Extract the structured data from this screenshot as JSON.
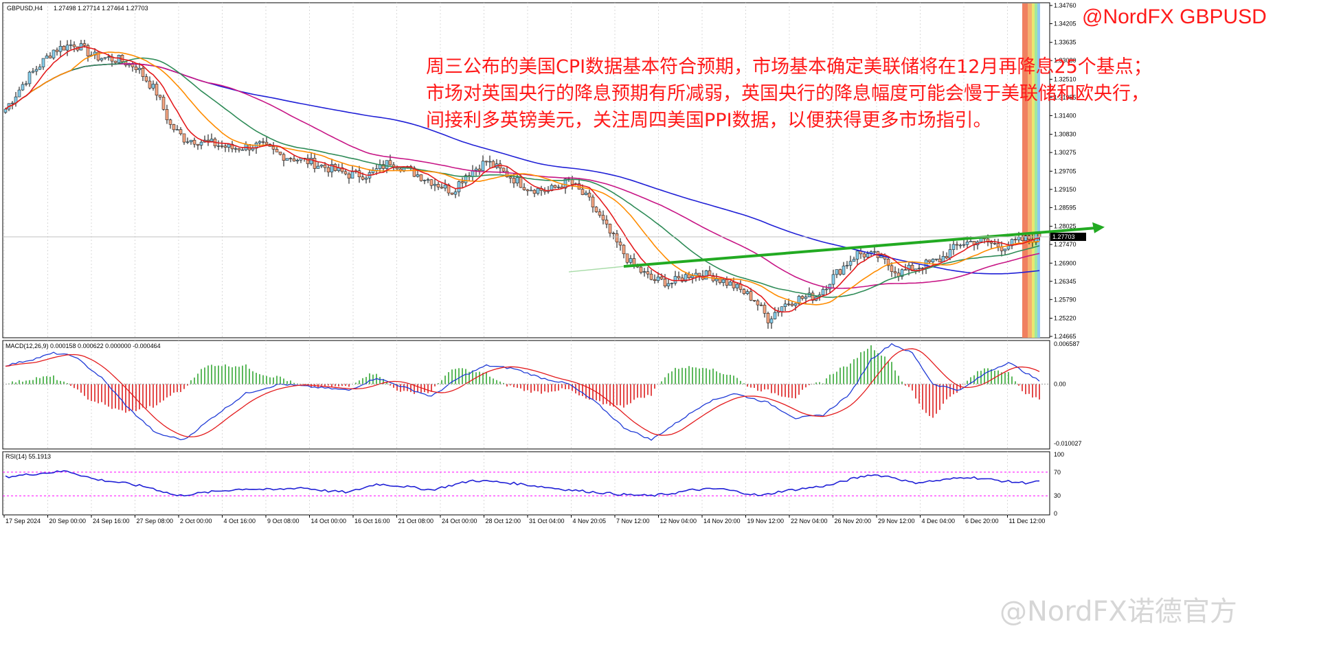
{
  "chart_header": {
    "symbol": "GBPUSD,H4",
    "ohlc": "1.27498 1.27714 1.27464 1.27703"
  },
  "annotation": {
    "brand": "@NordFX GBPUSD",
    "lines": [
      "周三公布的美国CPI数据基本符合预期，市场基本确定美联储将在12月再降息25个基点；",
      "市场对英国央行的降息预期有所减弱，英国央行的降息幅度可能会慢于美联储和欧央行，",
      "间接利多英镑美元，关注周四美国PPI数据，以便获得更多市场指引。"
    ]
  },
  "watermark": "@NordFX诺德官方",
  "current_price_label": "1.27703",
  "price_axis_ticks": [
    "1.34760",
    "1.34205",
    "1.33635",
    "1.33080",
    "1.32510",
    "1.31955",
    "1.31400",
    "1.30830",
    "1.30275",
    "1.29705",
    "1.29150",
    "1.28595",
    "1.28025",
    "1.27470",
    "1.26900",
    "1.26345",
    "1.25790",
    "1.25220",
    "1.24665"
  ],
  "macd": {
    "label": "MACD(12,26,9) 0.000158 0.000622 0.000000 -0.000464",
    "ticks": [
      "0.006587",
      "0.00",
      "-0.010027"
    ]
  },
  "rsi": {
    "label": "RSI(14) 55.1913",
    "ticks": [
      "100",
      "70",
      "30",
      "0"
    ],
    "value": 55.1913
  },
  "time_axis_labels": [
    "17 Sep 2024",
    "20 Sep 00:00",
    "24 Sep 16:00",
    "27 Sep 08:00",
    "2 Oct 00:00",
    "4 Oct 16:00",
    "9 Oct 08:00",
    "14 Oct 00:00",
    "16 Oct 16:00",
    "21 Oct 08:00",
    "24 Oct 00:00",
    "28 Oct 12:00",
    "31 Oct 04:00",
    "4 Nov 20:05",
    "7 Nov 12:00",
    "12 Nov 04:00",
    "14 Nov 20:00",
    "19 Nov 12:00",
    "22 Nov 04:00",
    "26 Nov 20:00",
    "29 Nov 12:00",
    "4 Dec 04:00",
    "6 Dec 20:00",
    "11 Dec 12:00"
  ],
  "colors": {
    "bull": "#87ceeb",
    "bear": "#f4a582",
    "ma_fast": "#e31a1c",
    "ma_orange": "#ff8c00",
    "ma_green": "#2e8b57",
    "ma_magenta": "#c71585",
    "ma_blue": "#1f1fd6",
    "arrow": "#22aa22",
    "macd_line": "#1f3ad6",
    "signal_line": "#e31a1c",
    "hist_pos": "#5cb85c",
    "hist_neg": "#e34a4a",
    "rsi_line": "#1f1fd6",
    "level_line": "#ff00ff"
  },
  "chart_data": {
    "type": "candlestick",
    "title": "GBPUSD,H4",
    "ylim": [
      1.24665,
      1.3476
    ],
    "close_anchors": [
      [
        0,
        1.316
      ],
      [
        6,
        1.325
      ],
      [
        14,
        1.334
      ],
      [
        20,
        1.336
      ],
      [
        26,
        1.332
      ],
      [
        33,
        1.331
      ],
      [
        38,
        1.329
      ],
      [
        44,
        1.321
      ],
      [
        48,
        1.311
      ],
      [
        52,
        1.307
      ],
      [
        58,
        1.306
      ],
      [
        66,
        1.304
      ],
      [
        74,
        1.305
      ],
      [
        80,
        1.302
      ],
      [
        88,
        1.3
      ],
      [
        94,
        1.298
      ],
      [
        100,
        1.296
      ],
      [
        106,
        1.296
      ],
      [
        112,
        1.3
      ],
      [
        118,
        1.297
      ],
      [
        124,
        1.294
      ],
      [
        130,
        1.291
      ],
      [
        134,
        1.296
      ],
      [
        140,
        1.3
      ],
      [
        146,
        1.296
      ],
      [
        152,
        1.292
      ],
      [
        158,
        1.291
      ],
      [
        164,
        1.294
      ],
      [
        170,
        1.288
      ],
      [
        176,
        1.278
      ],
      [
        182,
        1.269
      ],
      [
        188,
        1.264
      ],
      [
        194,
        1.263
      ],
      [
        200,
        1.266
      ],
      [
        206,
        1.265
      ],
      [
        212,
        1.262
      ],
      [
        218,
        1.258
      ],
      [
        222,
        1.252
      ],
      [
        226,
        1.256
      ],
      [
        230,
        1.258
      ],
      [
        236,
        1.259
      ],
      [
        242,
        1.266
      ],
      [
        248,
        1.272
      ],
      [
        254,
        1.271
      ],
      [
        260,
        1.266
      ],
      [
        266,
        1.268
      ],
      [
        272,
        1.27
      ],
      [
        278,
        1.275
      ],
      [
        284,
        1.276
      ],
      [
        290,
        1.274
      ],
      [
        296,
        1.276
      ],
      [
        301,
        1.277
      ]
    ],
    "trend_arrow": {
      "from": [
        180,
        1.268
      ],
      "to": [
        320,
        1.28
      ]
    },
    "macd_anchors": [
      [
        0,
        0.003
      ],
      [
        8,
        0.004
      ],
      [
        14,
        0.005
      ],
      [
        20,
        0.0045
      ],
      [
        28,
        0.001
      ],
      [
        36,
        -0.004
      ],
      [
        44,
        -0.008
      ],
      [
        52,
        -0.009
      ],
      [
        60,
        -0.0055
      ],
      [
        70,
        -0.0015
      ],
      [
        80,
        0.0
      ],
      [
        90,
        -0.0005
      ],
      [
        100,
        -0.001
      ],
      [
        108,
        0.001
      ],
      [
        116,
        -0.0005
      ],
      [
        124,
        -0.002
      ],
      [
        132,
        0.001
      ],
      [
        140,
        0.003
      ],
      [
        148,
        0.0025
      ],
      [
        156,
        0.001
      ],
      [
        164,
        0.0
      ],
      [
        172,
        -0.003
      ],
      [
        180,
        -0.007
      ],
      [
        188,
        -0.009
      ],
      [
        196,
        -0.006
      ],
      [
        204,
        -0.003
      ],
      [
        212,
        -0.0015
      ],
      [
        222,
        -0.003
      ],
      [
        230,
        -0.0055
      ],
      [
        238,
        -0.005
      ],
      [
        246,
        -0.0015
      ],
      [
        252,
        0.004
      ],
      [
        258,
        0.0065
      ],
      [
        264,
        0.005
      ],
      [
        270,
        0.0
      ],
      [
        278,
        -0.001
      ],
      [
        286,
        0.002
      ],
      [
        292,
        0.0035
      ],
      [
        298,
        0.0015
      ],
      [
        301,
        0.0005
      ]
    ],
    "rsi_anchors": [
      [
        0,
        62
      ],
      [
        10,
        68
      ],
      [
        18,
        72
      ],
      [
        26,
        58
      ],
      [
        34,
        52
      ],
      [
        42,
        44
      ],
      [
        50,
        30
      ],
      [
        56,
        34
      ],
      [
        62,
        38
      ],
      [
        70,
        42
      ],
      [
        78,
        40
      ],
      [
        86,
        44
      ],
      [
        94,
        38
      ],
      [
        100,
        36
      ],
      [
        108,
        50
      ],
      [
        116,
        46
      ],
      [
        124,
        40
      ],
      [
        130,
        48
      ],
      [
        136,
        56
      ],
      [
        142,
        54
      ],
      [
        150,
        50
      ],
      [
        158,
        44
      ],
      [
        164,
        40
      ],
      [
        172,
        36
      ],
      [
        180,
        32
      ],
      [
        188,
        30
      ],
      [
        194,
        34
      ],
      [
        200,
        40
      ],
      [
        208,
        42
      ],
      [
        214,
        36
      ],
      [
        220,
        30
      ],
      [
        226,
        38
      ],
      [
        232,
        42
      ],
      [
        240,
        48
      ],
      [
        246,
        58
      ],
      [
        252,
        66
      ],
      [
        258,
        62
      ],
      [
        264,
        52
      ],
      [
        272,
        56
      ],
      [
        280,
        62
      ],
      [
        286,
        58
      ],
      [
        292,
        54
      ],
      [
        297,
        52
      ],
      [
        301,
        55.19
      ]
    ],
    "ma_offsets": {
      "fast_period": 8,
      "orange_period": 20,
      "green_period": 34,
      "magenta_period": 60,
      "blue_period": 110
    }
  }
}
